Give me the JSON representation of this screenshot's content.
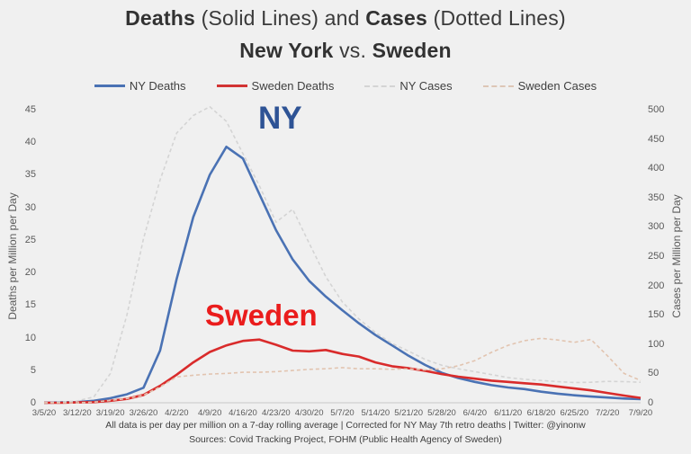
{
  "title": {
    "deaths_bold": "Deaths",
    "solid_note": " (Solid Lines) and ",
    "cases_bold": "Cases",
    "dotted_note": " (Dotted Lines)",
    "line2_bold1": "New York",
    "line2_mid": "  vs. ",
    "line2_bold2": "Sweden"
  },
  "legend": {
    "items": [
      {
        "label": "NY Deaths",
        "color": "#4a72b4",
        "dash": false
      },
      {
        "label": "Sweden Deaths",
        "color": "#d23434",
        "dash": false
      },
      {
        "label": "NY Cases",
        "color": "#d4d4d4",
        "dash": true
      },
      {
        "label": "Sweden Cases",
        "color": "#ddc6b6",
        "dash": true
      }
    ]
  },
  "annotations": {
    "ny": {
      "text": "NY",
      "color": "#2e5395"
    },
    "sweden": {
      "text": "Sweden",
      "color": "#ea1c1c"
    }
  },
  "footer": {
    "line1": "All data is per day per million on a 7-day rolling average | Corrected for NY May 7th retro deaths | Twitter: @yinonw",
    "line2": "Sources: Covid Tracking Project, FOHM (Public Health Agency of Sweden)"
  },
  "chart_data": {
    "type": "line",
    "title": "Deaths (Solid Lines) and Cases (Dotted Lines) — New York vs. Sweden",
    "xlabel": "",
    "ylabel_left": "Deaths per Million per Day",
    "ylabel_right": "Cases per Million per Day",
    "ylim_left": [
      0,
      45
    ],
    "ylim_right": [
      0,
      500
    ],
    "yticks_left": [
      0,
      5,
      10,
      15,
      20,
      25,
      30,
      35,
      40,
      45
    ],
    "yticks_right": [
      0,
      50,
      100,
      150,
      200,
      250,
      300,
      350,
      400,
      450,
      500
    ],
    "xticks": [
      "3/5/20",
      "3/12/20",
      "3/19/20",
      "3/26/20",
      "4/2/20",
      "4/9/20",
      "4/16/20",
      "4/23/20",
      "4/30/20",
      "5/7/20",
      "5/14/20",
      "5/21/20",
      "5/28/20",
      "6/4/20",
      "6/11/20",
      "6/18/20",
      "6/25/20",
      "7/2/20",
      "7/9/20"
    ],
    "x_sampling": "half-week steps from 3/5/20 (w=0) to 7/9/20 (w=18)",
    "grid": false,
    "legend_position": "top",
    "series": [
      {
        "name": "NY Deaths",
        "axis": "left",
        "style": "solid",
        "color": "#4a72b4",
        "width": 2.6,
        "values": [
          0,
          0.05,
          0.1,
          0.3,
          0.7,
          1.3,
          2.3,
          8,
          19,
          28.5,
          35,
          39.3,
          37.5,
          32,
          26.5,
          22,
          18.7,
          16.3,
          14.2,
          12.2,
          10.4,
          8.8,
          7.2,
          5.8,
          4.6,
          3.8,
          3.2,
          2.7,
          2.35,
          2.1,
          1.7,
          1.4,
          1.15,
          0.95,
          0.8,
          0.65,
          0.55
        ]
      },
      {
        "name": "Sweden Deaths",
        "axis": "left",
        "style": "solid",
        "color": "#d92b2b",
        "width": 2.6,
        "values": [
          0,
          0,
          0.05,
          0.1,
          0.3,
          0.6,
          1.2,
          2.6,
          4.3,
          6.2,
          7.8,
          8.8,
          9.5,
          9.7,
          8.9,
          8.0,
          7.9,
          8.1,
          7.5,
          7.1,
          6.2,
          5.6,
          5.3,
          4.9,
          4.4,
          4.0,
          3.7,
          3.4,
          3.2,
          3.0,
          2.8,
          2.5,
          2.2,
          1.9,
          1.5,
          1.1,
          0.75
        ]
      },
      {
        "name": "NY Cases",
        "axis": "right",
        "style": "dashed",
        "color": "#d4d4d4",
        "width": 1.6,
        "values": [
          0,
          1,
          3,
          10,
          50,
          150,
          280,
          380,
          460,
          490,
          505,
          480,
          425,
          370,
          308,
          330,
          272,
          215,
          172,
          143,
          120,
          101,
          88,
          74,
          64,
          58,
          53,
          48,
          43,
          40,
          38,
          36,
          34.5,
          35,
          36.5,
          36,
          35
        ]
      },
      {
        "name": "Sweden Cases",
        "axis": "right",
        "style": "dashed",
        "color": "#e2c4b0",
        "width": 1.6,
        "values": [
          0,
          0,
          0,
          1,
          4,
          7,
          13,
          27,
          44,
          47,
          49,
          50,
          52,
          52,
          53,
          55,
          57,
          58,
          60,
          58,
          58,
          57,
          58,
          56,
          58,
          63,
          72,
          86,
          98,
          106,
          110,
          107,
          103,
          108,
          80,
          50,
          38
        ]
      }
    ]
  }
}
